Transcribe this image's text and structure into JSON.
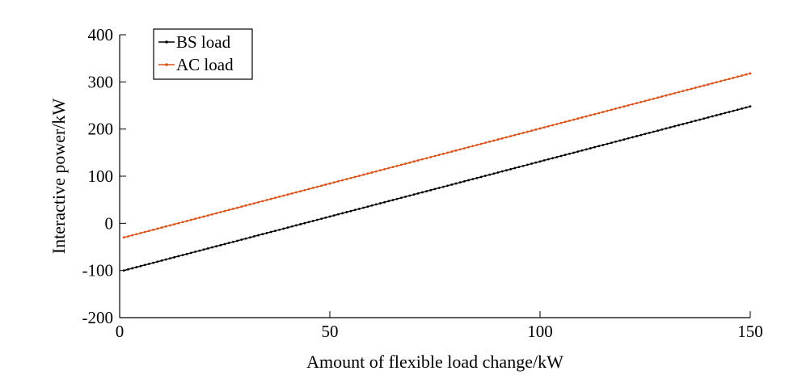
{
  "chart_data": {
    "type": "line",
    "title": "",
    "xlabel": "Amount of flexible load change/kW",
    "ylabel": "Interactive power/kW",
    "xlim": [
      0,
      150
    ],
    "ylim": [
      -200,
      400
    ],
    "xticks": [
      0,
      50,
      100,
      150
    ],
    "yticks": [
      -200,
      -100,
      0,
      100,
      200,
      300,
      400
    ],
    "grid": false,
    "legend_position": "top-left",
    "series": [
      {
        "name": "BS load",
        "color": "#000000",
        "x_start": 1,
        "x_end": 150,
        "x_step": 1,
        "y_at_start": -100,
        "y_at_end": 248,
        "marker": "dot"
      },
      {
        "name": "AC load",
        "color": "#d95319",
        "x_start": 1,
        "x_end": 150,
        "x_step": 1,
        "y_at_start": -30,
        "y_at_end": 318,
        "marker": "dot"
      }
    ]
  }
}
